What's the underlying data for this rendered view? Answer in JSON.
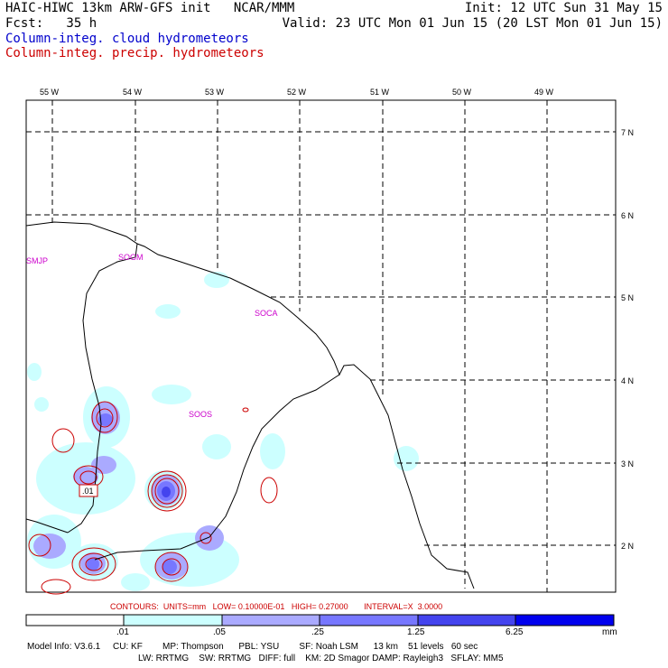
{
  "header": {
    "title_left": "HAIC-HIWC 13km ARW-GFS init   NCAR/MMM",
    "init": "Init: 12 UTC Sun 31 May 15",
    "fcst": "Fcst:   35 h",
    "valid": "Valid: 23 UTC Mon 01 Jun 15 (20 LST Mon 01 Jun 15)",
    "legend_cloud": "Column-integ. cloud hydrometeors",
    "legend_precip": "Column-integ. precip. hydrometeors",
    "cloud_color": "#0000cc",
    "precip_color": "#cc0000"
  },
  "map": {
    "lon_labels": [
      "55 W",
      "54 W",
      "53 W",
      "52 W",
      "51 W",
      "50 W",
      "49 W"
    ],
    "lat_labels": [
      "7 N",
      "6 N",
      "5 N",
      "4 N",
      "3 N",
      "2 N"
    ],
    "stations": [
      "SMJP",
      "SOGM",
      "SOCA",
      "SOOS"
    ],
    "contour_label": ".01"
  },
  "contours_info": "CONTOURS:  UNITS=mm   LOW= 0.10000E-01   HIGH= 0.27000       INTERVAL=X  3.0000",
  "colorbar": {
    "labels": [
      ".01",
      ".05",
      ".25",
      "1.25",
      "6.25"
    ],
    "unit": "mm",
    "colors": [
      "#ffffff",
      "#ccffff",
      "#aaaaff",
      "#7777ff",
      "#4444ee",
      "#0000ee"
    ]
  },
  "footer": {
    "line1": "Model Info: V3.6.1     CU: KF        MP: Thompson      PBL: YSU        SF: Noah LSM      13 km    51 levels   60 sec",
    "line2": "LW: RRTMG    SW: RRTMG   DIFF: full    KM: 2D Smagor DAMP: Rayleigh3   SFLAY: MM5"
  }
}
